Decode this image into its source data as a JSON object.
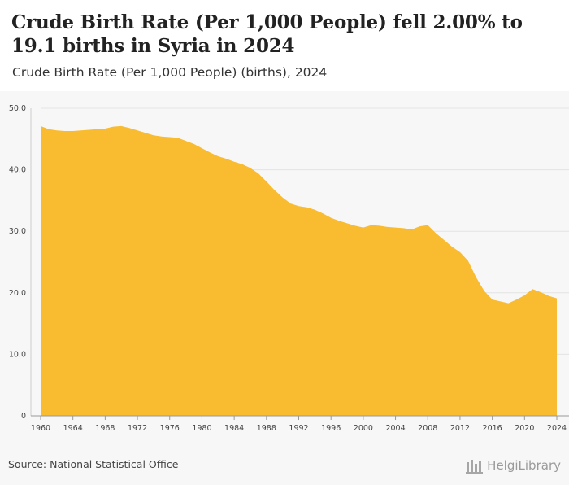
{
  "header": {
    "title": "Crude Birth Rate (Per 1,000 People) fell 2.00% to 19.1 births in Syria in 2024",
    "subtitle": "Crude Birth Rate (Per 1,000 People) (births), 2024"
  },
  "footer": {
    "source": "Source: National Statistical Office",
    "brand": "HelgiLibrary"
  },
  "colors": {
    "area": "#f9bb30",
    "grid": "#e4e4e4",
    "axis": "#999999"
  },
  "chart_data": {
    "type": "area",
    "x": [
      1960,
      1961,
      1962,
      1963,
      1964,
      1965,
      1966,
      1967,
      1968,
      1969,
      1970,
      1971,
      1972,
      1973,
      1974,
      1975,
      1976,
      1977,
      1978,
      1979,
      1980,
      1981,
      1982,
      1983,
      1984,
      1985,
      1986,
      1987,
      1988,
      1989,
      1990,
      1991,
      1992,
      1993,
      1994,
      1995,
      1996,
      1997,
      1998,
      1999,
      2000,
      2001,
      2002,
      2003,
      2004,
      2005,
      2006,
      2007,
      2008,
      2009,
      2010,
      2011,
      2012,
      2013,
      2014,
      2015,
      2016,
      2017,
      2018,
      2019,
      2020,
      2021,
      2022,
      2023,
      2024
    ],
    "series": [
      {
        "values": [
          47.1,
          46.6,
          46.4,
          46.3,
          46.3,
          46.4,
          46.5,
          46.6,
          46.7,
          47.0,
          47.1,
          46.8,
          46.4,
          46.0,
          45.6,
          45.4,
          45.3,
          45.2,
          44.7,
          44.2,
          43.5,
          42.8,
          42.2,
          41.8,
          41.3,
          40.9,
          40.3,
          39.4,
          38.1,
          36.7,
          35.5,
          34.5,
          34.1,
          33.9,
          33.5,
          32.9,
          32.2,
          31.7,
          31.3,
          30.9,
          30.6,
          31.0,
          30.9,
          30.7,
          30.6,
          30.5,
          30.3,
          30.8,
          31.0,
          29.7,
          28.6,
          27.5,
          26.6,
          25.2,
          22.5,
          20.3,
          18.9,
          18.6,
          18.3,
          18.9,
          19.6,
          20.6,
          20.1,
          19.5,
          19.1
        ]
      }
    ],
    "ylim": [
      0,
      50
    ],
    "yticks": [
      "0",
      "10.0",
      "20.0",
      "30.0",
      "40.0",
      "50.0"
    ],
    "xticks": [
      "1960",
      "1964",
      "1968",
      "1972",
      "1976",
      "1980",
      "1984",
      "1988",
      "1992",
      "1996",
      "2000",
      "2004",
      "2008",
      "2012",
      "2016",
      "2020",
      "2024"
    ],
    "grid": true
  }
}
